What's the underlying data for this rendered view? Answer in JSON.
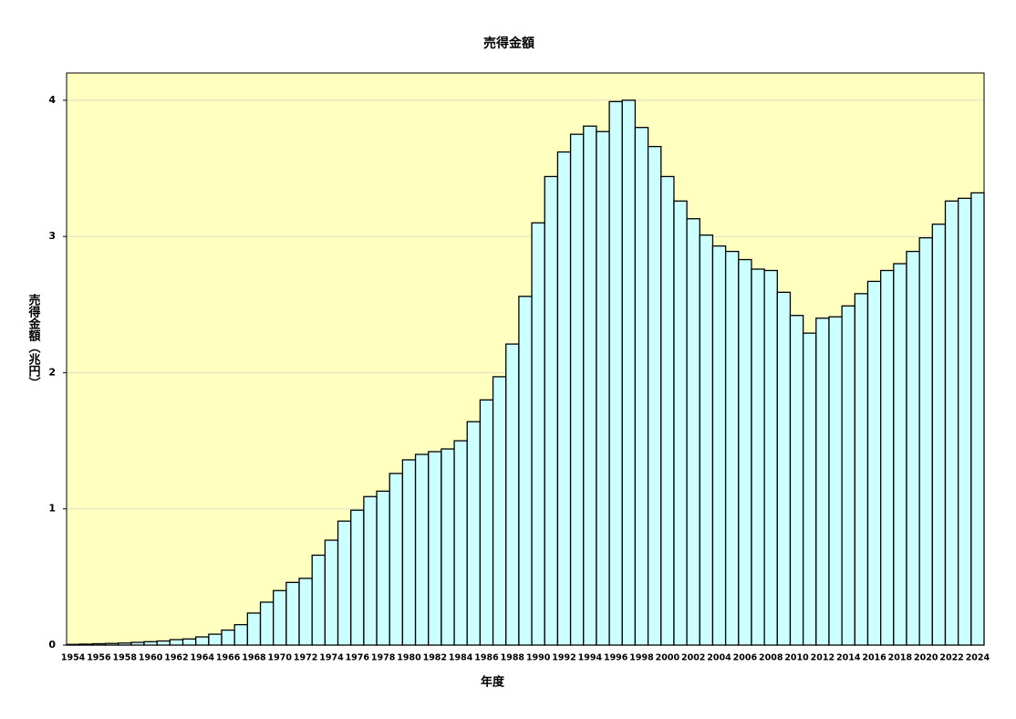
{
  "chart_data": {
    "type": "bar",
    "title": "売得金額",
    "x_label": "年度",
    "y_label": "売得金額（兆円）",
    "categories": [
      "1954",
      null,
      "1956",
      null,
      "1958",
      null,
      "1960",
      null,
      "1962",
      null,
      "1964",
      null,
      "1966",
      null,
      "1968",
      null,
      "1970",
      null,
      "1972",
      null,
      "1974",
      null,
      "1976",
      null,
      "1978",
      null,
      "1980",
      null,
      "1982",
      null,
      "1984",
      null,
      "1986",
      null,
      "1988",
      null,
      "1990",
      null,
      "1992",
      null,
      "1994",
      null,
      "1996",
      null,
      "1998",
      null,
      "2000",
      null,
      "2002",
      null,
      "2004",
      null,
      "2006",
      null,
      "2008",
      null,
      "2010",
      null,
      "2012",
      null,
      "2014",
      null,
      "2016",
      null,
      "2018",
      null,
      "2020",
      null,
      "2022",
      null,
      "2024"
    ],
    "values": [
      0.005,
      0.007,
      0.01,
      0.012,
      0.015,
      0.02,
      0.025,
      0.03,
      0.04,
      0.045,
      0.06,
      0.08,
      0.11,
      0.15,
      0.235,
      0.315,
      0.4,
      0.46,
      0.49,
      0.66,
      0.77,
      0.91,
      0.99,
      1.09,
      1.13,
      1.26,
      1.36,
      1.4,
      1.42,
      1.44,
      1.5,
      1.64,
      1.8,
      1.97,
      2.21,
      2.56,
      3.1,
      3.44,
      3.62,
      3.75,
      3.81,
      3.77,
      3.99,
      4.0,
      3.8,
      3.66,
      3.44,
      3.26,
      3.13,
      3.01,
      2.93,
      2.89,
      2.83,
      2.76,
      2.75,
      2.59,
      2.42,
      2.29,
      2.4,
      2.41,
      2.49,
      2.58,
      2.67,
      2.75,
      2.8,
      2.89,
      2.99,
      3.09,
      3.26,
      3.28,
      3.32
    ],
    "color": "#ccffff",
    "plot_background": "#ffffc0",
    "ylim": [
      0,
      4.2
    ],
    "yticks": [
      0,
      1,
      2,
      3,
      4
    ],
    "grid": true
  }
}
